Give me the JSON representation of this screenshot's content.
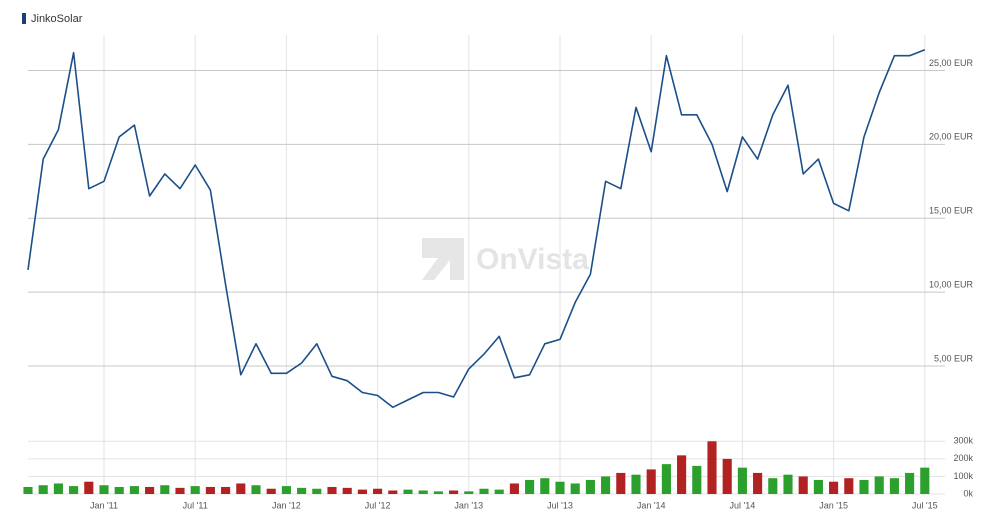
{
  "chart_data": [
    {
      "type": "line",
      "watermark": "OnVista",
      "grid": true,
      "x": [
        "2010-08",
        "2010-09",
        "2010-10",
        "2010-11",
        "2010-12",
        "2011-01",
        "2011-02",
        "2011-03",
        "2011-04",
        "2011-05",
        "2011-06",
        "2011-07",
        "2011-08",
        "2011-09",
        "2011-10",
        "2011-11",
        "2011-12",
        "2012-01",
        "2012-02",
        "2012-03",
        "2012-04",
        "2012-05",
        "2012-06",
        "2012-07",
        "2012-08",
        "2012-09",
        "2012-10",
        "2012-11",
        "2012-12",
        "2013-01",
        "2013-02",
        "2013-03",
        "2013-04",
        "2013-05",
        "2013-06",
        "2013-07",
        "2013-08",
        "2013-09",
        "2013-10",
        "2013-11",
        "2013-12",
        "2014-01",
        "2014-02",
        "2014-03",
        "2014-04",
        "2014-05",
        "2014-06",
        "2014-07",
        "2014-08",
        "2014-09",
        "2014-10",
        "2014-11",
        "2014-12",
        "2015-01",
        "2015-02",
        "2015-03",
        "2015-04",
        "2015-05",
        "2015-06",
        "2015-07"
      ],
      "xlim": [
        "2010-08",
        "2015-08"
      ],
      "ylim": [
        0.8,
        27.4
      ],
      "yticks": [
        {
          "value": 5,
          "label": "5,00 EUR"
        },
        {
          "value": 10,
          "label": "10,00 EUR"
        },
        {
          "value": 15,
          "label": "15,00 EUR"
        },
        {
          "value": 20,
          "label": "20,00 EUR"
        },
        {
          "value": 25,
          "label": "25,00 EUR"
        }
      ],
      "series": [
        {
          "name": "JinkoSolar",
          "color": "#1b4f8a",
          "values": [
            11.5,
            19,
            21,
            26.2,
            17,
            17.5,
            20.5,
            21.3,
            16.5,
            18,
            17,
            18.6,
            16.9,
            10.5,
            4.4,
            6.5,
            4.5,
            4.5,
            5.2,
            6.5,
            4.3,
            4.0,
            3.2,
            3.0,
            2.2,
            2.7,
            3.2,
            3.2,
            2.9,
            4.8,
            5.8,
            7.0,
            4.2,
            4.4,
            6.5,
            6.8,
            9.3,
            11.2,
            17.5,
            17.0,
            22.5,
            19.5,
            26,
            22,
            22,
            20,
            16.8,
            20.5,
            19,
            22,
            24,
            18,
            19,
            16,
            15.5,
            20.5,
            23.5,
            26,
            26,
            26.4
          ]
        }
      ]
    },
    {
      "type": "bar",
      "grid": true,
      "x": [
        "2010-08",
        "2010-09",
        "2010-10",
        "2010-11",
        "2010-12",
        "2011-01",
        "2011-02",
        "2011-03",
        "2011-04",
        "2011-05",
        "2011-06",
        "2011-07",
        "2011-08",
        "2011-09",
        "2011-10",
        "2011-11",
        "2011-12",
        "2012-01",
        "2012-02",
        "2012-03",
        "2012-04",
        "2012-05",
        "2012-06",
        "2012-07",
        "2012-08",
        "2012-09",
        "2012-10",
        "2012-11",
        "2012-12",
        "2013-01",
        "2013-02",
        "2013-03",
        "2013-04",
        "2013-05",
        "2013-06",
        "2013-07",
        "2013-08",
        "2013-09",
        "2013-10",
        "2013-11",
        "2013-12",
        "2014-01",
        "2014-02",
        "2014-03",
        "2014-04",
        "2014-05",
        "2014-06",
        "2014-07",
        "2014-08",
        "2014-09",
        "2014-10",
        "2014-11",
        "2014-12",
        "2015-01",
        "2015-02",
        "2015-03",
        "2015-04",
        "2015-05",
        "2015-06",
        "2015-07"
      ],
      "xlim": [
        "2010-08",
        "2015-08"
      ],
      "xticks": [
        {
          "value": "2011-01",
          "label": "Jan '11"
        },
        {
          "value": "2011-07",
          "label": "Jul '11"
        },
        {
          "value": "2012-01",
          "label": "Jan '12"
        },
        {
          "value": "2012-07",
          "label": "Jul '12"
        },
        {
          "value": "2013-01",
          "label": "Jan '13"
        },
        {
          "value": "2013-07",
          "label": "Jul '13"
        },
        {
          "value": "2014-01",
          "label": "Jan '14"
        },
        {
          "value": "2014-07",
          "label": "Jul '14"
        },
        {
          "value": "2015-01",
          "label": "Jan '15"
        },
        {
          "value": "2015-07",
          "label": "Jul '15"
        }
      ],
      "ylim": [
        0,
        370000
      ],
      "yticks": [
        {
          "value": 0,
          "label": "0k"
        },
        {
          "value": 100000,
          "label": "100k"
        },
        {
          "value": 200000,
          "label": "200k"
        },
        {
          "value": 300000,
          "label": "300k"
        }
      ],
      "values": [
        40000,
        50000,
        60000,
        45000,
        70000,
        50000,
        40000,
        45000,
        40000,
        50000,
        35000,
        45000,
        40000,
        40000,
        60000,
        50000,
        30000,
        45000,
        35000,
        30000,
        40000,
        35000,
        25000,
        30000,
        20000,
        25000,
        20000,
        15000,
        20000,
        15000,
        30000,
        25000,
        60000,
        80000,
        90000,
        70000,
        60000,
        80000,
        100000,
        120000,
        110000,
        140000,
        170000,
        220000,
        160000,
        300000,
        200000,
        150000,
        120000,
        90000,
        110000,
        100000,
        80000,
        70000,
        90000,
        80000,
        100000,
        90000,
        120000,
        150000
      ],
      "colors": [
        "#2ca02c",
        "#2ca02c",
        "#2ca02c",
        "#2ca02c",
        "#b22222",
        "#2ca02c",
        "#2ca02c",
        "#2ca02c",
        "#b22222",
        "#2ca02c",
        "#b22222",
        "#2ca02c",
        "#b22222",
        "#b22222",
        "#b22222",
        "#2ca02c",
        "#b22222",
        "#2ca02c",
        "#2ca02c",
        "#2ca02c",
        "#b22222",
        "#b22222",
        "#b22222",
        "#b22222",
        "#b22222",
        "#2ca02c",
        "#2ca02c",
        "#2ca02c",
        "#b22222",
        "#2ca02c",
        "#2ca02c",
        "#2ca02c",
        "#b22222",
        "#2ca02c",
        "#2ca02c",
        "#2ca02c",
        "#2ca02c",
        "#2ca02c",
        "#2ca02c",
        "#b22222",
        "#2ca02c",
        "#b22222",
        "#2ca02c",
        "#b22222",
        "#2ca02c",
        "#b22222",
        "#b22222",
        "#2ca02c",
        "#b22222",
        "#2ca02c",
        "#2ca02c",
        "#b22222",
        "#2ca02c",
        "#b22222",
        "#b22222",
        "#2ca02c",
        "#2ca02c",
        "#2ca02c",
        "#2ca02c",
        "#2ca02c"
      ]
    }
  ]
}
